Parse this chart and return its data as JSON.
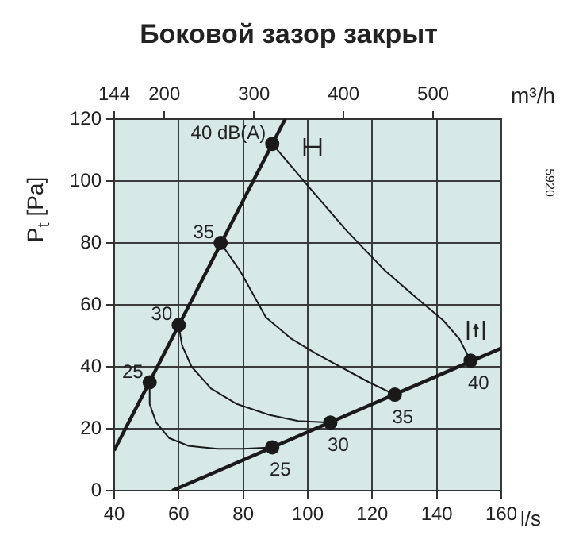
{
  "chart_data": {
    "type": "line",
    "title": "Боковой зазор закрыт",
    "xlabel": "l/s",
    "x2label": "m³/h",
    "ylabel": "P$_{t}$ [Pa]",
    "xlim": [
      40,
      160
    ],
    "xticks": [
      40,
      60,
      80,
      100,
      120,
      140,
      160
    ],
    "x2lim": [
      144,
      576
    ],
    "x2ticks": [
      144,
      200,
      300,
      400,
      500
    ],
    "ylim": [
      0,
      120
    ],
    "yticks": [
      0,
      20,
      40,
      60,
      80,
      100,
      120
    ],
    "grid": true,
    "legend": false,
    "marker": "none",
    "line_style": "solid",
    "series": [
      {
        "color": "#1a1a1a",
        "x": [
          40,
          93
        ],
        "values": [
          13,
          120
        ]
      },
      {
        "color": "#1a1a1a",
        "x": [
          58,
          160
        ],
        "values": [
          0,
          46
        ]
      },
      {
        "color": "#1a1a1a",
        "x": [
          51,
          51,
          53,
          57,
          63,
          72,
          80,
          89
        ],
        "values": [
          35,
          28,
          22,
          17,
          14.5,
          13.5,
          13.5,
          14
        ]
      },
      {
        "color": "#1a1a1a",
        "x": [
          60,
          61,
          64,
          70,
          78,
          88,
          97,
          107
        ],
        "values": [
          53.5,
          47,
          40,
          33,
          28,
          24.5,
          22.5,
          22
        ]
      },
      {
        "color": "#1a1a1a",
        "x": [
          73,
          79,
          87,
          95,
          103,
          119,
          127
        ],
        "values": [
          80,
          71,
          56,
          49,
          44,
          35,
          31
        ]
      },
      {
        "color": "#1a1a1a",
        "x": [
          89,
          100,
          112,
          124,
          134,
          142,
          147,
          150.5
        ],
        "values": [
          112,
          98.5,
          84,
          71,
          62,
          55,
          49,
          42
        ]
      },
      {
        "type": "scatter",
        "marker": "circle",
        "color": "#1a1a1a",
        "x": [
          51,
          60,
          73,
          89,
          89,
          107,
          127,
          150.5
        ],
        "values": [
          35,
          53.5,
          80,
          112,
          14,
          22,
          31,
          42
        ]
      }
    ],
    "annotations": [
      {
        "text": "40 dB(A)",
        "x": 89,
        "y": 112
      },
      {
        "text": "35",
        "x": 73,
        "y": 80
      },
      {
        "text": "30",
        "x": 60,
        "y": 53.5
      },
      {
        "text": "25",
        "x": 51,
        "y": 35
      },
      {
        "text": "25",
        "x": 89,
        "y": 14
      },
      {
        "text": "30",
        "x": 107,
        "y": 22
      },
      {
        "text": "35",
        "x": 127,
        "y": 31
      },
      {
        "text": "40",
        "x": 150.5,
        "y": 42
      },
      "5920"
    ]
  }
}
